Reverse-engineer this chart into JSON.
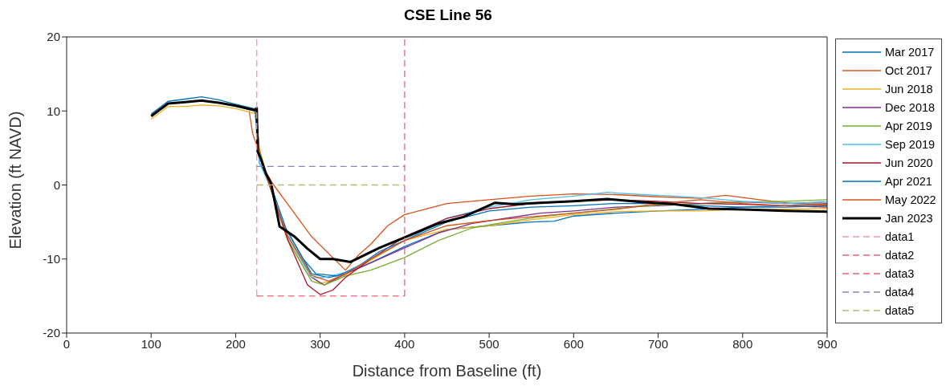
{
  "chart_data": {
    "type": "line",
    "title": "CSE Line 56",
    "xlabel": "Distance from Baseline (ft)",
    "ylabel": "Elevation (ft NAVD)",
    "xlim": [
      0,
      900
    ],
    "xticks": [
      0,
      100,
      200,
      300,
      400,
      500,
      600,
      700,
      800,
      900
    ],
    "ylim": [
      -20,
      20
    ],
    "yticks": [
      -20,
      -10,
      0,
      10,
      20
    ],
    "grid": false,
    "legend": "right",
    "line_style": "solid",
    "marker": "none",
    "series": [
      {
        "name": "Mar 2017",
        "color": "#0072bd",
        "x": [
          100,
          120,
          140,
          160,
          180,
          200,
          222,
          225,
          228,
          240,
          260,
          290,
          310,
          330,
          360,
          400,
          450,
          500,
          550,
          577,
          600,
          650,
          700,
          750,
          800,
          850,
          900
        ],
        "values": [
          9.6,
          11.3,
          11.6,
          11.9,
          11.5,
          10.9,
          10.3,
          8,
          3,
          0.5,
          -6,
          -12,
          -12.5,
          -12,
          -10.5,
          -8.3,
          -6,
          -5.5,
          -5,
          -4.9,
          -4.2,
          -3.8,
          -3.5,
          -3.3,
          -3,
          -2.8,
          -2.5
        ]
      },
      {
        "name": "Oct 2017",
        "color": "#d95319",
        "x": [
          216,
          220,
          226,
          232,
          245,
          290,
          330,
          345,
          360,
          380,
          400,
          450,
          500,
          550,
          600,
          650,
          700,
          750,
          780,
          820,
          860,
          900
        ],
        "values": [
          10,
          7,
          5,
          2.5,
          0,
          -7,
          -11.5,
          -9.5,
          -8,
          -5.5,
          -4,
          -2.5,
          -2,
          -1.5,
          -1.2,
          -1.3,
          -1.6,
          -1.8,
          -1.4,
          -2,
          -2.5,
          -2.6
        ]
      },
      {
        "name": "Jun 2018",
        "color": "#edb120",
        "x": [
          100,
          120,
          140,
          160,
          180,
          200,
          222,
          225,
          228,
          240,
          260,
          285,
          300,
          320,
          340,
          370,
          400,
          450,
          500,
          550,
          600,
          650,
          700,
          750,
          800,
          900
        ],
        "values": [
          8.9,
          10.6,
          10.6,
          10.8,
          10.7,
          10.3,
          9.7,
          9,
          5,
          0,
          -7,
          -12,
          -13.3,
          -12.8,
          -11.5,
          -9.5,
          -7.5,
          -6,
          -5.5,
          -4.7,
          -4,
          -3.6,
          -3.5,
          -3.5,
          -3.3,
          -3.2
        ]
      },
      {
        "name": "Dec 2018",
        "color": "#7e2f8e",
        "x": [
          225,
          228,
          240,
          262,
          290,
          305,
          330,
          360,
          400,
          440,
          480,
          520,
          560,
          600,
          650,
          700,
          750,
          800,
          850,
          900
        ],
        "values": [
          9,
          4,
          0,
          -7,
          -12.5,
          -13.5,
          -12,
          -10.5,
          -8.5,
          -6.5,
          -5.2,
          -4.5,
          -3.8,
          -3.5,
          -3,
          -2.8,
          -2.5,
          -2.3,
          -2.5,
          -2.3
        ]
      },
      {
        "name": "Apr 2019",
        "color": "#77ac30",
        "x": [
          225,
          228,
          240,
          262,
          290,
          305,
          330,
          360,
          400,
          440,
          480,
          520,
          560,
          600,
          650,
          700,
          750,
          800,
          850,
          900
        ],
        "values": [
          9,
          4,
          0,
          -7.5,
          -13,
          -13.5,
          -12.3,
          -11.5,
          -9.8,
          -7.5,
          -5.8,
          -5,
          -4.3,
          -3.8,
          -3.2,
          -2.7,
          -2.5,
          -2.3,
          -2.2,
          -2
        ]
      },
      {
        "name": "Sep 2019",
        "color": "#4dbeee",
        "x": [
          225,
          228,
          240,
          262,
          290,
          305,
          330,
          360,
          400,
          450,
          500,
          550,
          600,
          640,
          680,
          720,
          760,
          800,
          850,
          900
        ],
        "values": [
          9,
          3,
          0,
          -7,
          -12.5,
          -12.5,
          -11.8,
          -10,
          -7.5,
          -4.5,
          -3,
          -2,
          -1.5,
          -1,
          -1.3,
          -1.5,
          -1.8,
          -2.2,
          -2.5,
          -2.3
        ]
      },
      {
        "name": "Jun 2020",
        "color": "#a2142f",
        "x": [
          225,
          228,
          240,
          262,
          285,
          300,
          315,
          330,
          360,
          400,
          450,
          500,
          550,
          600,
          650,
          700,
          750,
          800,
          850,
          900
        ],
        "values": [
          9,
          4,
          0,
          -7.5,
          -13.5,
          -14.8,
          -14.2,
          -12.5,
          -10,
          -7,
          -4.5,
          -3.2,
          -2.5,
          -2.2,
          -2,
          -2.2,
          -2.5,
          -2.6,
          -2.8,
          -3
        ]
      },
      {
        "name": "Apr 2021",
        "color": "#0072bd",
        "x": [
          225,
          228,
          240,
          255,
          280,
          295,
          320,
          345,
          370,
          400,
          450,
          500,
          550,
          600,
          650,
          700,
          750,
          800,
          850,
          900
        ],
        "values": [
          9,
          4.5,
          0,
          -5,
          -10,
          -12,
          -12.3,
          -11,
          -9,
          -7.5,
          -5,
          -3.5,
          -3,
          -2.8,
          -2.5,
          -2.5,
          -2.8,
          -3,
          -3,
          -2.8
        ]
      },
      {
        "name": "May 2022",
        "color": "#d95319",
        "x": [
          225,
          228,
          240,
          260,
          290,
          310,
          330,
          360,
          400,
          450,
          500,
          550,
          600,
          650,
          700,
          750,
          800,
          850,
          900
        ],
        "values": [
          9,
          4,
          0,
          -6.5,
          -12.2,
          -13,
          -12,
          -10,
          -7.5,
          -5.5,
          -4.8,
          -4.3,
          -3.8,
          -3.3,
          -2.5,
          -2,
          -2.5,
          -2.8,
          -2.7
        ]
      },
      {
        "name": "Jan 2023",
        "color": "#000000",
        "x": [
          100,
          120,
          140,
          160,
          180,
          200,
          222,
          225,
          226,
          230,
          236,
          242,
          252,
          270,
          285,
          300,
          315,
          336,
          370,
          404,
          440,
          470,
          507,
          530,
          560,
          600,
          640,
          680,
          720,
          760,
          800,
          850,
          900
        ],
        "values": [
          9.3,
          11,
          11.2,
          11.4,
          11.1,
          10.7,
          10.1,
          10.4,
          4.5,
          3.5,
          1.5,
          0.2,
          -5.6,
          -7,
          -8.6,
          -10,
          -10,
          -10.4,
          -8.5,
          -6.9,
          -5.2,
          -4.3,
          -2.4,
          -2.6,
          -2.4,
          -2.2,
          -1.9,
          -2.3,
          -2.6,
          -3.2,
          -3.3,
          -3.5,
          -3.6
        ]
      },
      {
        "name": "data1",
        "color": "#e89aaa",
        "line_style": "dashed",
        "x": [
          225,
          225
        ],
        "values": [
          -15,
          20
        ]
      },
      {
        "name": "data2",
        "color": "#e8607a",
        "line_style": "dashed",
        "x": [
          400,
          400
        ],
        "values": [
          -15,
          20
        ]
      },
      {
        "name": "data3",
        "color": "#e8607a",
        "line_style": "dashed",
        "x": [
          225,
          400
        ],
        "values": [
          -15,
          -15
        ]
      },
      {
        "name": "data4",
        "color": "#8a86b8",
        "line_style": "dashed",
        "x": [
          225,
          400
        ],
        "values": [
          2.5,
          2.5
        ]
      },
      {
        "name": "data5",
        "color": "#b8b870",
        "line_style": "dashed",
        "x": [
          225,
          400
        ],
        "values": [
          0,
          0
        ]
      }
    ]
  }
}
